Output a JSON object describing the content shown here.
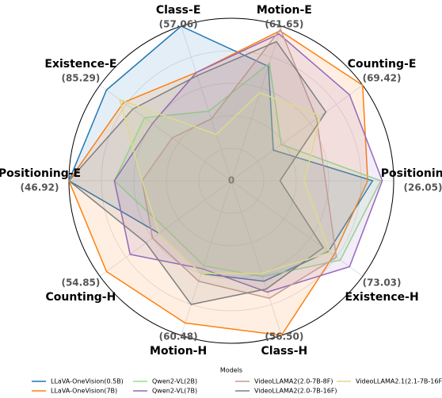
{
  "chart_data": {
    "type": "radar",
    "categories": [
      "Positioning-H",
      "Counting-E",
      "Motion-E",
      "Class-E",
      "Existence-E",
      "Positioning-E",
      "Counting-H",
      "Motion-H",
      "Class-H",
      "Existence-H"
    ],
    "category_values": [
      "(26.05)",
      "(69.42)",
      "(61.65)",
      "(57.06)",
      "(85.29)",
      "(46.92)",
      "(54.85)",
      "(60.48)",
      "(56.50)",
      "(73.03)"
    ],
    "rlim": [
      0,
      1
    ],
    "rticks": [
      0
    ],
    "grid": true,
    "legend_title": "Models",
    "series": [
      {
        "name": "LLaVA-OneVision(0.5B)",
        "color": "#1f77b4",
        "values": [
          0.87,
          0.32,
          0.74,
          1.0,
          0.95,
          1.0,
          0.55,
          0.6,
          0.65,
          0.74
        ]
      },
      {
        "name": "LLaVA-OneVision(7B)",
        "color": "#ff7f0e",
        "values": [
          0.84,
          1.0,
          0.97,
          0.7,
          0.82,
          1.0,
          0.95,
          0.92,
          1.0,
          0.78
        ]
      },
      {
        "name": "Qwen2-VL(2B)",
        "color": "#98df8a",
        "values": [
          0.92,
          0.38,
          0.76,
          0.45,
          0.66,
          0.72,
          0.5,
          0.55,
          0.62,
          0.83
        ]
      },
      {
        "name": "Qwen2-VL(7B)",
        "color": "#9467bd",
        "values": [
          0.93,
          0.9,
          0.95,
          0.7,
          0.6,
          0.72,
          0.77,
          0.57,
          0.72,
          0.9
        ]
      },
      {
        "name": "VideoLLAMA2(2.0-7B-8F)",
        "color": "#c49c94",
        "values": [
          0.58,
          0.65,
          0.98,
          0.4,
          0.45,
          0.55,
          0.6,
          0.65,
          0.76,
          0.8
        ]
      },
      {
        "name": "VideoLLAMA2(2.0-7B-16F)",
        "color": "#7f7f7f",
        "values": [
          0.3,
          0.72,
          0.9,
          0.68,
          0.75,
          1.0,
          0.65,
          0.8,
          0.7,
          0.7
        ]
      },
      {
        "name": "VideoLLAMA2.1(2.1-7B-16F)",
        "color": "#dbdb8d",
        "values": [
          0.45,
          0.68,
          0.57,
          0.3,
          0.85,
          0.55,
          0.55,
          0.6,
          0.6,
          0.75
        ]
      }
    ]
  }
}
